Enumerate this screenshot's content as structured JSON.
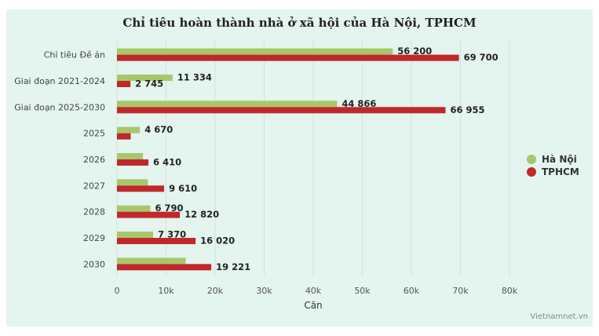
{
  "chart_data": {
    "type": "bar",
    "orientation": "horizontal",
    "title": "Chỉ tiêu hoàn thành nhà ở xã hội của Hà Nội, TPHCM",
    "xlabel": "Căn",
    "ylabel": "",
    "xlim": [
      0,
      80000
    ],
    "xticks": [
      "0",
      "10k",
      "20k",
      "30k",
      "40k",
      "50k",
      "60k",
      "70k",
      "80k"
    ],
    "grid": "vertical",
    "legend_position": "right",
    "categories": [
      "Chỉ tiêu Đề án",
      "Giai đoạn 2021-2024",
      "Giai đoạn 2025-2030",
      "2025",
      "2026",
      "2027",
      "2028",
      "2029",
      "2030"
    ],
    "series": [
      {
        "name": "Hà Nội",
        "color": "#a6c86b",
        "values": [
          56200,
          11334,
          44866,
          4670,
          5300,
          6300,
          6790,
          7370,
          14000
        ],
        "labels": [
          "56 200",
          "11 334",
          "44 866",
          "4 670",
          "",
          "",
          "6 790",
          "7 370",
          ""
        ]
      },
      {
        "name": "TPHCM",
        "color": "#c0282b",
        "values": [
          69700,
          2745,
          66955,
          2800,
          6410,
          9610,
          12820,
          16020,
          19221
        ],
        "labels": [
          "69 700",
          "2 745",
          "66 955",
          "",
          "6 410",
          "9 610",
          "12 820",
          "16 020",
          "19 221"
        ]
      }
    ]
  },
  "source": "Vietnamnet.vn"
}
